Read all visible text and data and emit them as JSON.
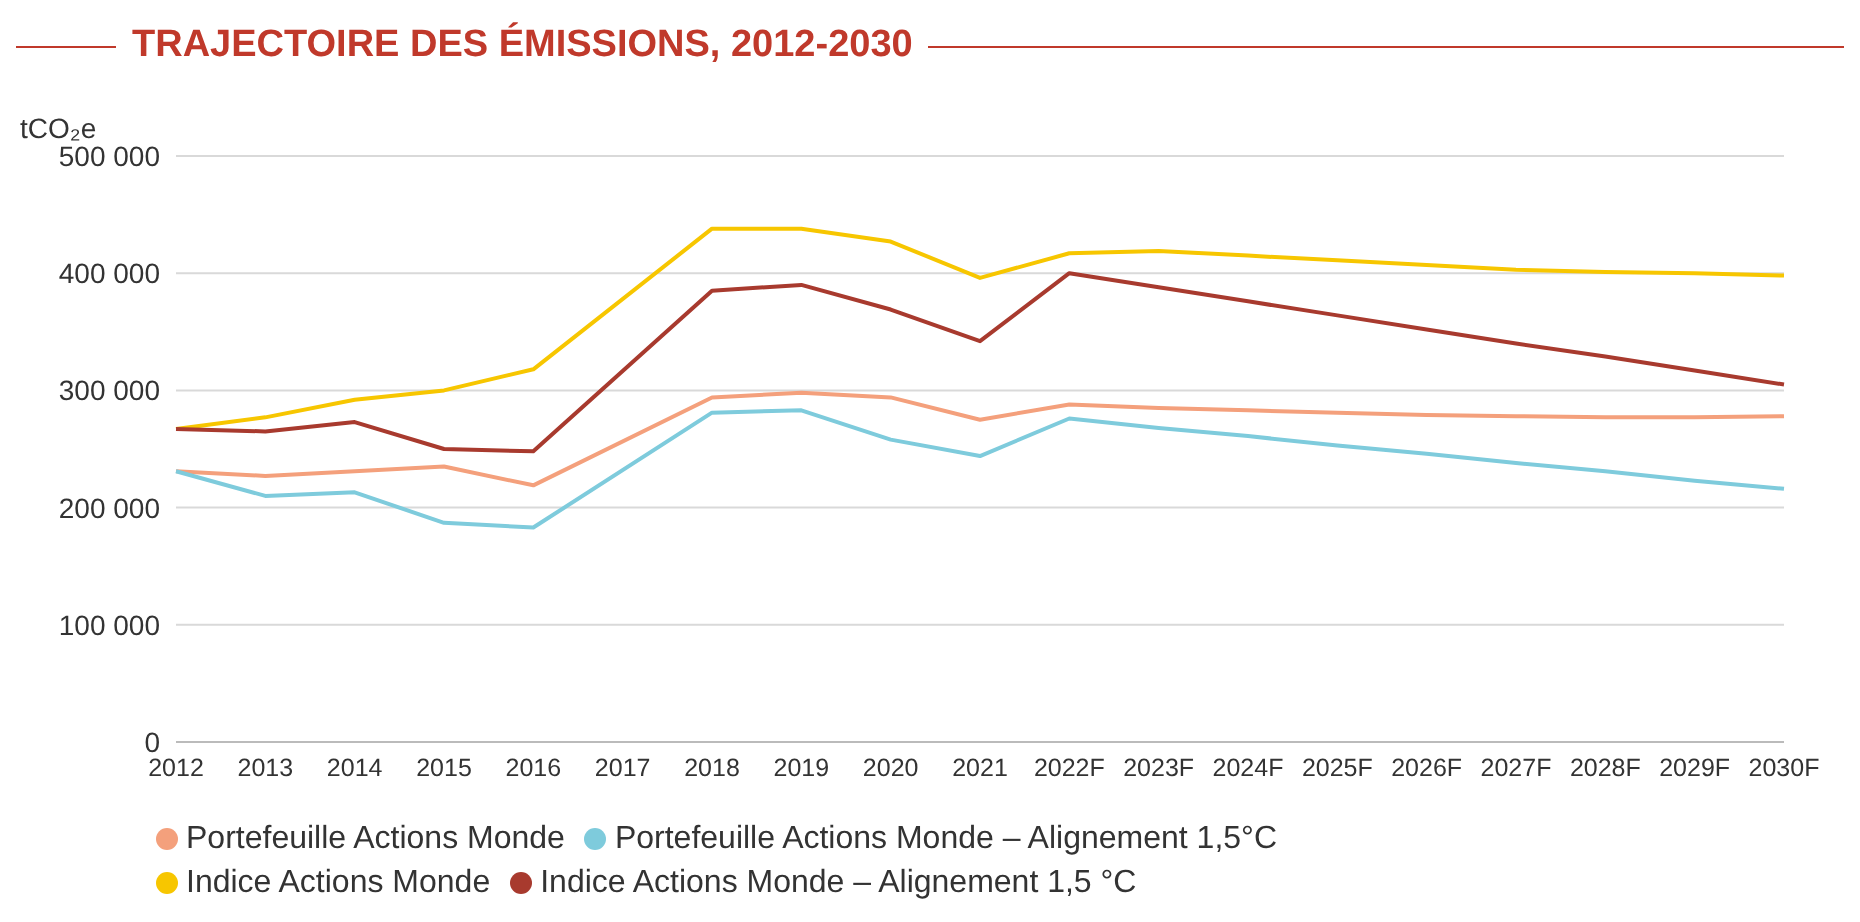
{
  "chart_data": {
    "type": "line",
    "title": "TRAJECTOIRE DES ÉMISSIONS, 2012-2030",
    "ylabel": "tCO₂e",
    "categories": [
      "2012",
      "2013",
      "2014",
      "2015",
      "2016",
      "2017",
      "2018",
      "2019",
      "2020",
      "2021",
      "2022F",
      "2023F",
      "2024F",
      "2025F",
      "2026F",
      "2027F",
      "2028F",
      "2029F",
      "2030F"
    ],
    "series": [
      {
        "name": "Portefeuille Actions Monde",
        "color": "#f4a07c",
        "values": [
          231000,
          227000,
          231000,
          235000,
          219000,
          null,
          294000,
          298000,
          294000,
          275000,
          288000,
          285000,
          283000,
          281000,
          279000,
          278000,
          277000,
          277000,
          278000
        ]
      },
      {
        "name": "Portefeuille Actions Monde – Alignement 1,5°C",
        "color": "#7ecbdc",
        "values": [
          231000,
          210000,
          213000,
          187000,
          183000,
          null,
          281000,
          283000,
          258000,
          244000,
          276000,
          268000,
          261000,
          253000,
          246000,
          238000,
          231000,
          223000,
          216000
        ]
      },
      {
        "name": "Indice Actions Monde",
        "color": "#f7c600",
        "values": [
          267000,
          277000,
          292000,
          300000,
          318000,
          null,
          438000,
          438000,
          427000,
          396000,
          417000,
          419000,
          415000,
          411000,
          407000,
          403000,
          401000,
          400000,
          398000
        ]
      },
      {
        "name": "Indice Actions Monde – Alignement 1,5 °C",
        "color": "#a83a2e",
        "values": [
          267000,
          265000,
          273000,
          250000,
          248000,
          null,
          385000,
          390000,
          369000,
          342000,
          400000,
          388000,
          376000,
          364000,
          352000,
          340000,
          329000,
          317000,
          305000
        ]
      }
    ],
    "ylim": [
      0,
      500000
    ],
    "yticks": [
      0,
      100000,
      200000,
      300000,
      400000,
      500000
    ],
    "grid": "y",
    "legend": "bottom left",
    "marker": "none",
    "line_style": "solid"
  }
}
